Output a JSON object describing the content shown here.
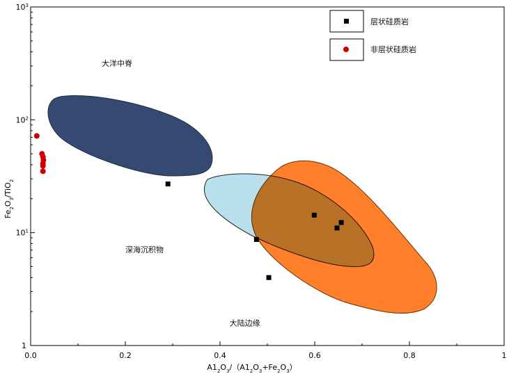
{
  "chart_data": {
    "type": "scatter",
    "title": "",
    "x_axis": {
      "label_parts": [
        {
          "t": "A1"
        },
        {
          "t": "2",
          "sub": true
        },
        {
          "t": "O"
        },
        {
          "t": "3",
          "sub": true
        },
        {
          "t": "/（A1"
        },
        {
          "t": "2",
          "sub": true
        },
        {
          "t": "O"
        },
        {
          "t": "3",
          "sub": true
        },
        {
          "t": "+Fe"
        },
        {
          "t": "2",
          "sub": true
        },
        {
          "t": "O"
        },
        {
          "t": "3",
          "sub": true
        },
        {
          "t": "）"
        }
      ],
      "range": [
        0,
        1
      ],
      "ticks": [
        {
          "v": 0,
          "label": "0.0"
        },
        {
          "v": 0.2,
          "label": "0.2"
        },
        {
          "v": 0.4,
          "label": "0.4"
        },
        {
          "v": 0.6,
          "label": "0.6"
        },
        {
          "v": 0.8,
          "label": "0.8"
        },
        {
          "v": 1,
          "label": "1"
        }
      ],
      "minor_step": 0.1
    },
    "y_axis": {
      "label_parts": [
        {
          "t": "Fe"
        },
        {
          "t": "2",
          "sub": true
        },
        {
          "t": "O"
        },
        {
          "t": "3",
          "sub": true
        },
        {
          "t": "/TiO"
        },
        {
          "t": "2",
          "sub": true
        }
      ],
      "scale": "log",
      "range": [
        1,
        1000
      ],
      "ticks": [
        {
          "v": 1,
          "base": "1",
          "exp": ""
        },
        {
          "v": 10,
          "base": "10",
          "exp": "1"
        },
        {
          "v": 100,
          "base": "10",
          "exp": "2"
        },
        {
          "v": 1000,
          "base": "10",
          "exp": "3"
        }
      ]
    },
    "grid": false,
    "fields": [
      {
        "name": "大洋中脊",
        "label_at": [
          0.15,
          300
        ],
        "color": "#344a72"
      },
      {
        "name": "深海沉积物",
        "label_at": [
          0.2,
          6.7
        ],
        "color": "#b9e0ec"
      },
      {
        "name": "大陆边缘",
        "label_at": [
          0.42,
          1.5
        ],
        "color": "#ff7f2a"
      }
    ],
    "legend": {
      "position": "top-right",
      "entries": [
        {
          "label": "层状硅质岩",
          "marker": "square",
          "color": "#000000"
        },
        {
          "label": "非层状硅质岩",
          "marker": "circle",
          "color": "#cc0000"
        }
      ]
    },
    "series": [
      {
        "name": "层状硅质岩",
        "marker": "square",
        "color": "#000000",
        "points": [
          {
            "x": 0.29,
            "y": 27
          },
          {
            "x": 0.477,
            "y": 8.7
          },
          {
            "x": 0.503,
            "y": 4.0
          },
          {
            "x": 0.599,
            "y": 14.3
          },
          {
            "x": 0.647,
            "y": 11.0
          },
          {
            "x": 0.656,
            "y": 12.3
          }
        ]
      },
      {
        "name": "非层状硅质岩",
        "marker": "circle",
        "color": "#cc0000",
        "points": [
          {
            "x": 0.013,
            "y": 72
          },
          {
            "x": 0.024,
            "y": 50
          },
          {
            "x": 0.026,
            "y": 47
          },
          {
            "x": 0.027,
            "y": 44
          },
          {
            "x": 0.026,
            "y": 41
          },
          {
            "x": 0.026,
            "y": 39
          },
          {
            "x": 0.026,
            "y": 35
          }
        ]
      }
    ]
  }
}
